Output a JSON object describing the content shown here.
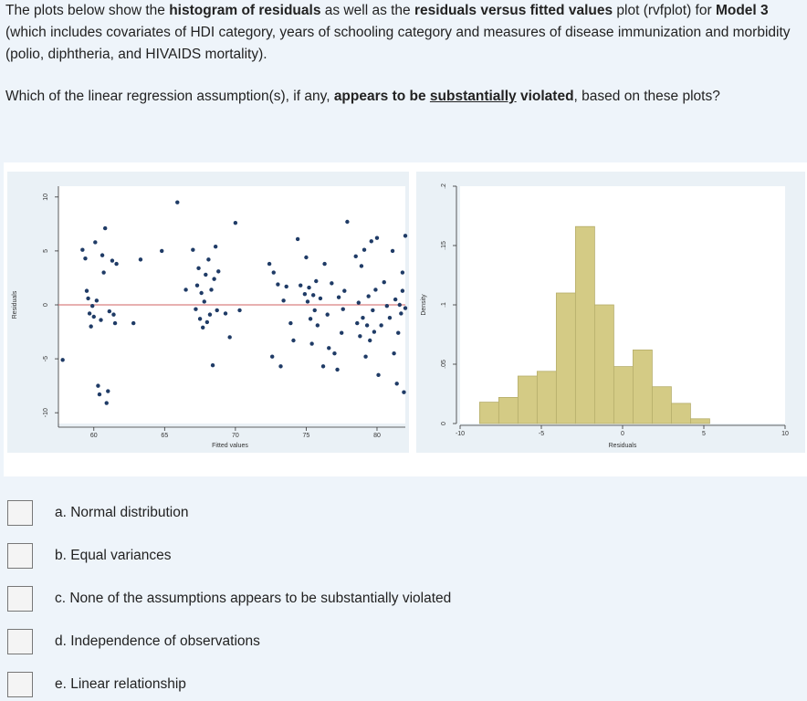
{
  "question": {
    "intro_1": "The plots below show the ",
    "intro_bold_1": "histogram of residuals",
    "intro_2": " as well as the ",
    "intro_bold_2": "residuals versus fitted values",
    "intro_3": " plot (rvfplot) for ",
    "intro_bold_3": "Model 3",
    "intro_4": " (which includes covariates of HDI category, years of schooling category and measures of disease immunization and morbidity (polio, diphtheria, and HIVAIDS mortality).",
    "prompt_1": "Which of the linear regression assumption(s), if any, ",
    "prompt_bold_1": "appears to be ",
    "prompt_underline": "substantially",
    "prompt_bold_2": " violated",
    "prompt_2": ", based on these plots?"
  },
  "chart_data": [
    {
      "type": "scatter",
      "xlabel": "Fitted values",
      "ylabel": "Residuals",
      "xlim": [
        57.5,
        82
      ],
      "ylim": [
        -11,
        11
      ],
      "xticks": [
        "60",
        "65",
        "70",
        "75",
        "80"
      ],
      "yticks": [
        "-10",
        "-5",
        "0",
        "5",
        "10"
      ],
      "reference_line_y": 0,
      "reference_color": "#d98080",
      "point_color": "#1f3b66",
      "points": [
        [
          59.2,
          5.1
        ],
        [
          59.4,
          4.3
        ],
        [
          59.5,
          1.3
        ],
        [
          59.6,
          0.6
        ],
        [
          59.7,
          -0.8
        ],
        [
          59.8,
          -2.0
        ],
        [
          59.9,
          -0.1
        ],
        [
          60.0,
          -1.1
        ],
        [
          60.1,
          5.8
        ],
        [
          60.2,
          0.4
        ],
        [
          60.3,
          -7.5
        ],
        [
          60.4,
          -8.3
        ],
        [
          60.5,
          -1.4
        ],
        [
          60.6,
          4.6
        ],
        [
          60.7,
          3.0
        ],
        [
          60.8,
          7.1
        ],
        [
          60.9,
          -9.1
        ],
        [
          61.0,
          -8.0
        ],
        [
          61.1,
          -0.6
        ],
        [
          61.3,
          4.1
        ],
        [
          61.4,
          -0.9
        ],
        [
          61.5,
          -1.7
        ],
        [
          61.6,
          3.8
        ],
        [
          57.8,
          -5.1
        ],
        [
          62.8,
          -1.7
        ],
        [
          63.3,
          4.2
        ],
        [
          64.8,
          5.0
        ],
        [
          65.9,
          9.5
        ],
        [
          66.5,
          1.4
        ],
        [
          67.0,
          5.1
        ],
        [
          67.2,
          -0.4
        ],
        [
          67.3,
          1.8
        ],
        [
          67.4,
          3.4
        ],
        [
          67.5,
          -1.3
        ],
        [
          67.6,
          1.1
        ],
        [
          67.7,
          -2.1
        ],
        [
          67.8,
          0.3
        ],
        [
          67.9,
          2.8
        ],
        [
          68.0,
          -1.6
        ],
        [
          68.1,
          4.2
        ],
        [
          68.2,
          -0.9
        ],
        [
          68.3,
          1.4
        ],
        [
          68.4,
          -5.6
        ],
        [
          68.5,
          2.4
        ],
        [
          68.6,
          5.4
        ],
        [
          68.7,
          -0.5
        ],
        [
          68.8,
          3.1
        ],
        [
          69.3,
          -0.8
        ],
        [
          69.6,
          -3.0
        ],
        [
          70.0,
          7.6
        ],
        [
          70.3,
          -0.5
        ],
        [
          72.4,
          3.8
        ],
        [
          72.6,
          -4.8
        ],
        [
          72.7,
          3.0
        ],
        [
          73.0,
          1.9
        ],
        [
          73.2,
          -5.7
        ],
        [
          73.4,
          0.4
        ],
        [
          73.6,
          1.7
        ],
        [
          73.9,
          -1.7
        ],
        [
          74.1,
          -3.3
        ],
        [
          74.4,
          6.1
        ],
        [
          74.6,
          1.8
        ],
        [
          74.9,
          1.0
        ],
        [
          75.0,
          4.4
        ],
        [
          75.1,
          0.3
        ],
        [
          75.3,
          -1.3
        ],
        [
          75.5,
          0.9
        ],
        [
          75.6,
          -0.5
        ],
        [
          75.7,
          2.2
        ],
        [
          75.8,
          -1.9
        ],
        [
          76.0,
          0.6
        ],
        [
          76.2,
          -5.7
        ],
        [
          76.3,
          3.8
        ],
        [
          76.5,
          -0.9
        ],
        [
          76.6,
          -4.0
        ],
        [
          76.8,
          2.0
        ],
        [
          77.0,
          -4.5
        ],
        [
          77.2,
          -6.0
        ],
        [
          77.3,
          0.7
        ],
        [
          77.5,
          -2.6
        ],
        [
          77.6,
          -0.4
        ],
        [
          77.7,
          1.3
        ],
        [
          77.9,
          7.7
        ],
        [
          75.4,
          -3.6
        ],
        [
          75.2,
          1.6
        ],
        [
          78.5,
          4.5
        ],
        [
          78.6,
          -1.7
        ],
        [
          78.7,
          0.2
        ],
        [
          78.8,
          -2.9
        ],
        [
          78.9,
          3.6
        ],
        [
          79.0,
          -1.2
        ],
        [
          79.1,
          5.1
        ],
        [
          79.2,
          -4.8
        ],
        [
          79.3,
          -1.9
        ],
        [
          79.4,
          0.8
        ],
        [
          79.5,
          -3.3
        ],
        [
          79.6,
          5.9
        ],
        [
          79.7,
          -0.5
        ],
        [
          79.8,
          -2.5
        ],
        [
          79.9,
          1.4
        ],
        [
          80.0,
          6.2
        ],
        [
          80.1,
          -6.5
        ],
        [
          80.3,
          -1.9
        ],
        [
          80.5,
          2.1
        ],
        [
          80.7,
          -0.1
        ],
        [
          80.9,
          -1.2
        ],
        [
          81.1,
          5.0
        ],
        [
          81.2,
          -4.5
        ],
        [
          81.3,
          0.5
        ],
        [
          81.4,
          -7.3
        ],
        [
          81.5,
          -2.6
        ],
        [
          81.6,
          0.0
        ],
        [
          81.7,
          -0.8
        ],
        [
          81.8,
          1.3
        ],
        [
          81.9,
          -8.1
        ],
        [
          82.0,
          -0.3
        ],
        [
          82.0,
          6.4
        ],
        [
          81.8,
          3.0
        ]
      ]
    },
    {
      "type": "bar",
      "xlabel": "Residuals",
      "ylabel": "Density",
      "xlim": [
        -10,
        10
      ],
      "ylim": [
        0,
        0.2
      ],
      "xticks": [
        "-10",
        "-5",
        "0",
        "5",
        "10"
      ],
      "yticks": [
        "0",
        ".05",
        ".1",
        ".15",
        ".2"
      ],
      "bin_width": 1.18,
      "bin_start": -8.8,
      "values": [
        0.018,
        0.022,
        0.04,
        0.044,
        0.11,
        0.166,
        0.1,
        0.048,
        0.062,
        0.031,
        0.017,
        0.004
      ],
      "bar_color": "#d4cb85",
      "bar_edge": "#b5ad6a"
    }
  ],
  "options": [
    {
      "label": "a. Normal distribution"
    },
    {
      "label": "b. Equal variances"
    },
    {
      "label": "c. None of the assumptions appears to be substantially violated"
    },
    {
      "label": "d. Independence of observations"
    },
    {
      "label": "e. Linear relationship"
    }
  ]
}
